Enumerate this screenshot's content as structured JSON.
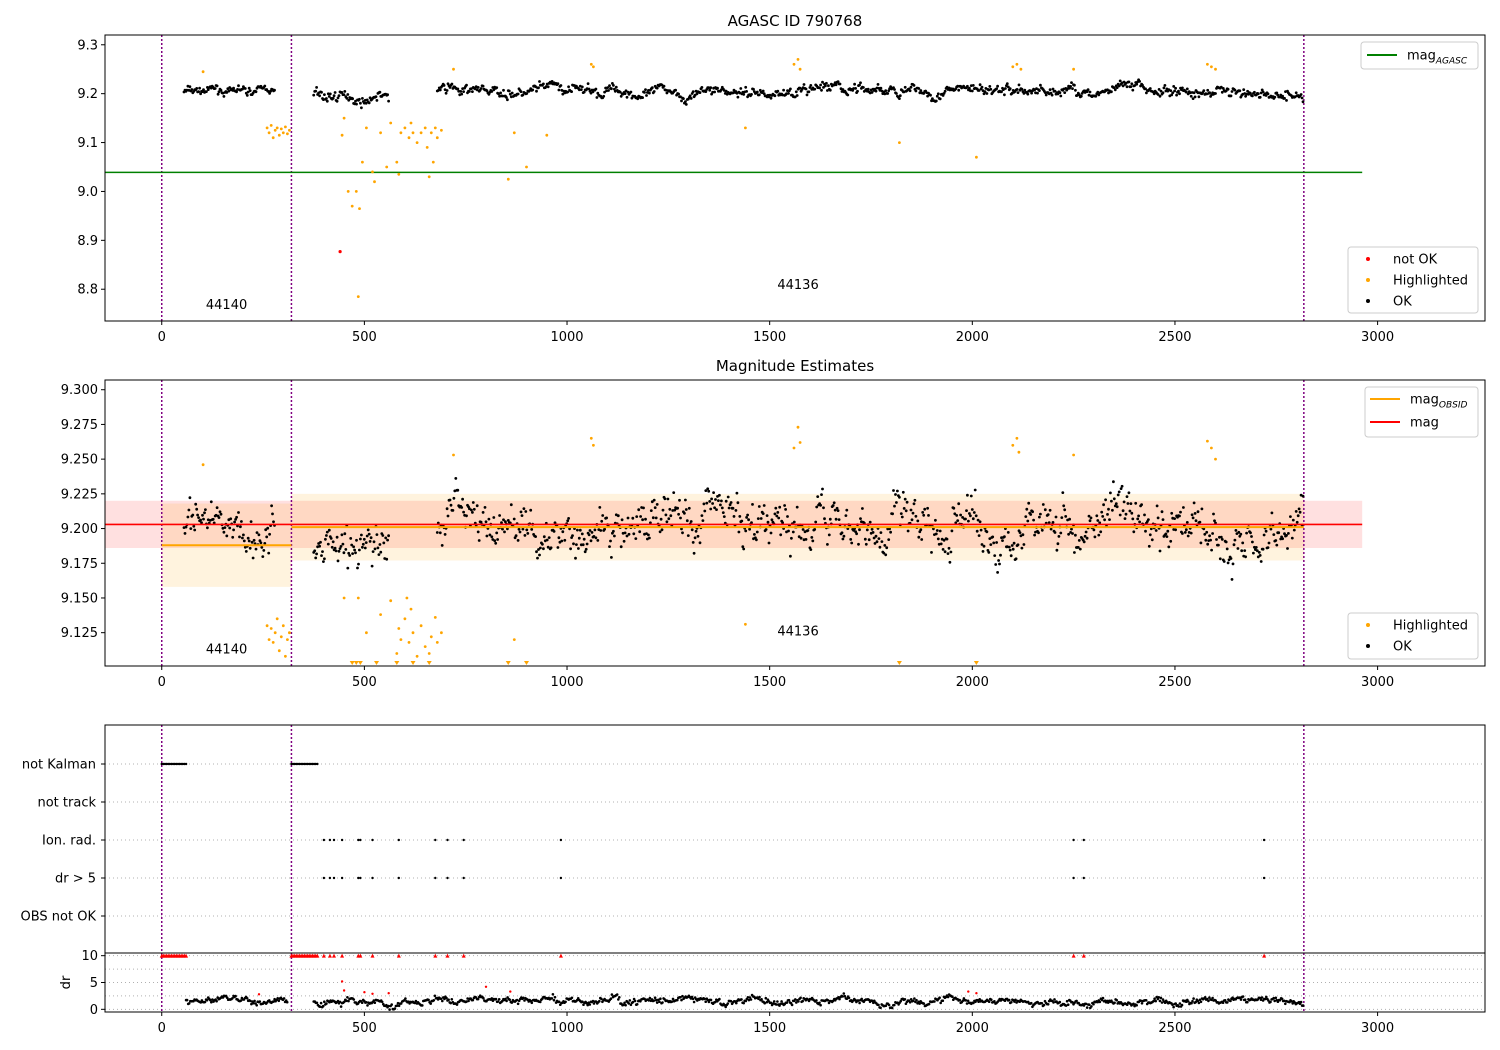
{
  "figure": {
    "width": 1500,
    "height": 1050
  },
  "chart_data": [
    {
      "id": "agasc",
      "type": "scatter",
      "title": "AGASC ID 790768",
      "xlim": [
        -140,
        3265
      ],
      "ylim": [
        8.735,
        9.32
      ],
      "xticks": [
        0,
        500,
        1000,
        1500,
        2000,
        2500,
        3000
      ],
      "yticks": [
        8.8,
        8.9,
        9.0,
        9.1,
        9.2,
        9.3
      ],
      "ytick_labels": [
        "8.8",
        "8.9",
        "9.0",
        "9.1",
        "9.2",
        "9.3"
      ],
      "colors": {
        "ok": "#000000",
        "highlighted": "#ffa500",
        "not_ok": "#ff0000",
        "mag_agasc": "#008000",
        "vline": "#800080"
      },
      "obs_boundaries": [
        0,
        320,
        2818
      ],
      "obs_labels": [
        {
          "text": "44140",
          "x": 160,
          "y": 8.76
        },
        {
          "text": "44136",
          "x": 1570,
          "y": 8.8
        }
      ],
      "mag_agasc": {
        "value": 9.039,
        "x": [
          -140,
          2962
        ]
      },
      "legend_top": [
        {
          "label": "mag",
          "subscript": "AGASC",
          "color": "#008000"
        }
      ],
      "legend_bottom": [
        {
          "label": "not OK",
          "color": "#ff0000"
        },
        {
          "label": "Highlighted",
          "color": "#ffa500"
        },
        {
          "label": "OK",
          "color": "#000000"
        }
      ],
      "series": [
        {
          "name": "OK",
          "segments": [
            [
              55,
              280,
              9.205,
              0.009
            ],
            [
              375,
              560,
              9.195,
              0.014
            ],
            [
              680,
              2818,
              9.205,
              0.012
            ]
          ]
        },
        {
          "name": "Highlighted",
          "points": [
            [
              102,
              9.245
            ],
            [
              260,
              9.13
            ],
            [
              265,
              9.12
            ],
            [
              270,
              9.135
            ],
            [
              275,
              9.11
            ],
            [
              280,
              9.125
            ],
            [
              285,
              9.13
            ],
            [
              290,
              9.115
            ],
            [
              295,
              9.128
            ],
            [
              300,
              9.12
            ],
            [
              305,
              9.132
            ],
            [
              310,
              9.118
            ],
            [
              315,
              9.125
            ],
            [
              445,
              9.115
            ],
            [
              450,
              9.15
            ],
            [
              460,
              9.0
            ],
            [
              470,
              8.97
            ],
            [
              480,
              9.0
            ],
            [
              485,
              8.785
            ],
            [
              488,
              8.965
            ],
            [
              495,
              9.06
            ],
            [
              505,
              9.13
            ],
            [
              520,
              9.04
            ],
            [
              525,
              9.02
            ],
            [
              540,
              9.12
            ],
            [
              555,
              9.05
            ],
            [
              565,
              9.14
            ],
            [
              580,
              9.06
            ],
            [
              585,
              9.035
            ],
            [
              590,
              9.12
            ],
            [
              600,
              9.13
            ],
            [
              610,
              9.11
            ],
            [
              615,
              9.14
            ],
            [
              620,
              9.12
            ],
            [
              630,
              9.1
            ],
            [
              640,
              9.12
            ],
            [
              650,
              9.13
            ],
            [
              655,
              9.09
            ],
            [
              660,
              9.03
            ],
            [
              665,
              9.12
            ],
            [
              670,
              9.06
            ],
            [
              675,
              9.13
            ],
            [
              680,
              9.11
            ],
            [
              690,
              9.125
            ],
            [
              720,
              9.25
            ],
            [
              855,
              9.025
            ],
            [
              870,
              9.12
            ],
            [
              900,
              9.05
            ],
            [
              950,
              9.115
            ],
            [
              1060,
              9.26
            ],
            [
              1065,
              9.255
            ],
            [
              1440,
              9.13
            ],
            [
              1560,
              9.26
            ],
            [
              1570,
              9.27
            ],
            [
              1575,
              9.25
            ],
            [
              1820,
              9.1
            ],
            [
              2010,
              9.07
            ],
            [
              2100,
              9.255
            ],
            [
              2110,
              9.26
            ],
            [
              2120,
              9.25
            ],
            [
              2250,
              9.25
            ],
            [
              2580,
              9.26
            ],
            [
              2590,
              9.255
            ],
            [
              2600,
              9.25
            ]
          ]
        },
        {
          "name": "not OK",
          "points": [
            [
              440,
              8.877
            ]
          ]
        }
      ]
    },
    {
      "id": "mag",
      "type": "scatter",
      "title": "Magnitude Estimates",
      "xlim": [
        -140,
        3265
      ],
      "ylim": [
        9.101,
        9.307
      ],
      "xticks": [
        0,
        500,
        1000,
        1500,
        2000,
        2500,
        3000
      ],
      "yticks": [
        9.125,
        9.15,
        9.175,
        9.2,
        9.225,
        9.25,
        9.275,
        9.3
      ],
      "ytick_labels": [
        "9.125",
        "9.150",
        "9.175",
        "9.200",
        "9.225",
        "9.250",
        "9.275",
        "9.300"
      ],
      "colors": {
        "ok": "#000000",
        "highlighted": "#ffa500",
        "mag": "#ff0000",
        "mag_obsid": "#ffa500",
        "vline": "#800080"
      },
      "obs_boundaries": [
        0,
        320,
        2818
      ],
      "obs_labels": [
        {
          "text": "44140",
          "x": 160,
          "y": 9.11
        },
        {
          "text": "44136",
          "x": 1570,
          "y": 9.123
        }
      ],
      "mag": {
        "value": 9.203,
        "band": [
          9.186,
          9.22
        ],
        "x": [
          -140,
          2962
        ]
      },
      "mag_obsid": [
        {
          "x": [
            0,
            320
          ],
          "value": 9.188,
          "band": [
            9.158,
            9.218
          ]
        },
        {
          "x": [
            320,
            2818
          ],
          "value": 9.201,
          "band": [
            9.177,
            9.225
          ]
        }
      ],
      "legend_top": [
        {
          "label": "mag",
          "subscript": "OBSID",
          "color": "#ffa500"
        },
        {
          "label": "mag",
          "subscript": "",
          "color": "#ff0000"
        }
      ],
      "legend_bottom": [
        {
          "label": "Highlighted",
          "color": "#ffa500"
        },
        {
          "label": "OK",
          "color": "#000000"
        }
      ],
      "series": [
        {
          "name": "OK",
          "segments": [
            [
              55,
              280,
              9.2,
              0.016
            ],
            [
              375,
              560,
              9.19,
              0.02
            ],
            [
              680,
              2818,
              9.203,
              0.018
            ]
          ]
        },
        {
          "name": "Highlighted",
          "points": [
            [
              102,
              9.246
            ],
            [
              260,
              9.13
            ],
            [
              265,
              9.12
            ],
            [
              270,
              9.128
            ],
            [
              275,
              9.118
            ],
            [
              280,
              9.125
            ],
            [
              285,
              9.135
            ],
            [
              290,
              9.112
            ],
            [
              295,
              9.122
            ],
            [
              300,
              9.13
            ],
            [
              305,
              9.108
            ],
            [
              310,
              9.12
            ],
            [
              315,
              9.125
            ],
            [
              450,
              9.15
            ],
            [
              485,
              9.15
            ],
            [
              505,
              9.125
            ],
            [
              540,
              9.138
            ],
            [
              565,
              9.148
            ],
            [
              580,
              9.11
            ],
            [
              585,
              9.128
            ],
            [
              590,
              9.12
            ],
            [
              600,
              9.135
            ],
            [
              605,
              9.15
            ],
            [
              610,
              9.118
            ],
            [
              615,
              9.142
            ],
            [
              620,
              9.125
            ],
            [
              630,
              9.108
            ],
            [
              640,
              9.13
            ],
            [
              650,
              9.115
            ],
            [
              660,
              9.11
            ],
            [
              665,
              9.122
            ],
            [
              675,
              9.136
            ],
            [
              680,
              9.118
            ],
            [
              690,
              9.125
            ],
            [
              720,
              9.253
            ],
            [
              870,
              9.12
            ],
            [
              1060,
              9.265
            ],
            [
              1065,
              9.26
            ],
            [
              1440,
              9.131
            ],
            [
              1560,
              9.258
            ],
            [
              1570,
              9.273
            ],
            [
              1575,
              9.262
            ],
            [
              2100,
              9.26
            ],
            [
              2110,
              9.265
            ],
            [
              2115,
              9.255
            ],
            [
              2250,
              9.253
            ],
            [
              2580,
              9.263
            ],
            [
              2590,
              9.258
            ],
            [
              2600,
              9.25
            ]
          ]
        },
        {
          "name": "Highlighted (clipped)",
          "points": [
            [
              470,
              9.101
            ],
            [
              480,
              9.101
            ],
            [
              490,
              9.101
            ],
            [
              530,
              9.101
            ],
            [
              580,
              9.101
            ],
            [
              620,
              9.101
            ],
            [
              660,
              9.101
            ],
            [
              855,
              9.101
            ],
            [
              900,
              9.101
            ],
            [
              1820,
              9.101
            ],
            [
              2010,
              9.101
            ]
          ]
        }
      ]
    },
    {
      "id": "flags",
      "type": "scatter",
      "title": "",
      "xlim": [
        -140,
        3265
      ],
      "categories": [
        "not Kalman",
        "not track",
        "Ion. rad.",
        "dr > 5",
        "OBS not OK"
      ],
      "colors": {
        "points": "#000000",
        "vline": "#800080",
        "grid": "#b0b0b0"
      },
      "obs_boundaries": [
        0,
        320,
        2818
      ],
      "series": [
        {
          "name": "not Kalman",
          "ranges": [
            [
              0,
              60
            ],
            [
              320,
              385
            ]
          ]
        },
        {
          "name": "not track",
          "points": []
        },
        {
          "name": "Ion. rad.",
          "points": [
            400,
            415,
            425,
            445,
            485,
            490,
            520,
            585,
            675,
            705,
            745,
            985,
            2250,
            2275,
            2720
          ]
        },
        {
          "name": "dr > 5",
          "points": [
            400,
            415,
            425,
            445,
            485,
            490,
            520,
            585,
            675,
            705,
            745,
            985,
            2250,
            2275,
            2720
          ]
        },
        {
          "name": "OBS not OK",
          "points": []
        }
      ]
    },
    {
      "id": "dr",
      "type": "scatter",
      "title": "",
      "ylabel": "dr",
      "xlim": [
        -140,
        3265
      ],
      "ylim": [
        -0.5,
        10.5
      ],
      "xticks": [
        0,
        500,
        1000,
        1500,
        2000,
        2500,
        3000
      ],
      "yticks": [
        0,
        5,
        10
      ],
      "colors": {
        "points": "#000000",
        "clipped": "#ff0000",
        "vline": "#800080"
      },
      "obs_boundaries": [
        0,
        320,
        2818
      ],
      "series": [
        {
          "name": "dr",
          "segments": [
            [
              60,
              310,
              1.5,
              0.6
            ],
            [
              375,
              2818,
              1.5,
              0.7
            ]
          ]
        },
        {
          "name": "dr (outliers)",
          "points": [
            [
              240,
              2.8
            ],
            [
              445,
              5.2
            ],
            [
              450,
              3.5
            ],
            [
              500,
              3.2
            ],
            [
              520,
              2.9
            ],
            [
              560,
              3.0
            ],
            [
              800,
              4.2
            ],
            [
              860,
              3.3
            ],
            [
              1990,
              3.3
            ],
            [
              2010,
              3.0
            ]
          ]
        },
        {
          "name": "dr > 10 (clipped)",
          "ranges": [
            [
              0,
              60
            ],
            [
              320,
              385
            ]
          ],
          "points": [
            400,
            415,
            425,
            445,
            485,
            490,
            520,
            585,
            675,
            705,
            745,
            985,
            2250,
            2275,
            2720
          ]
        }
      ]
    }
  ]
}
